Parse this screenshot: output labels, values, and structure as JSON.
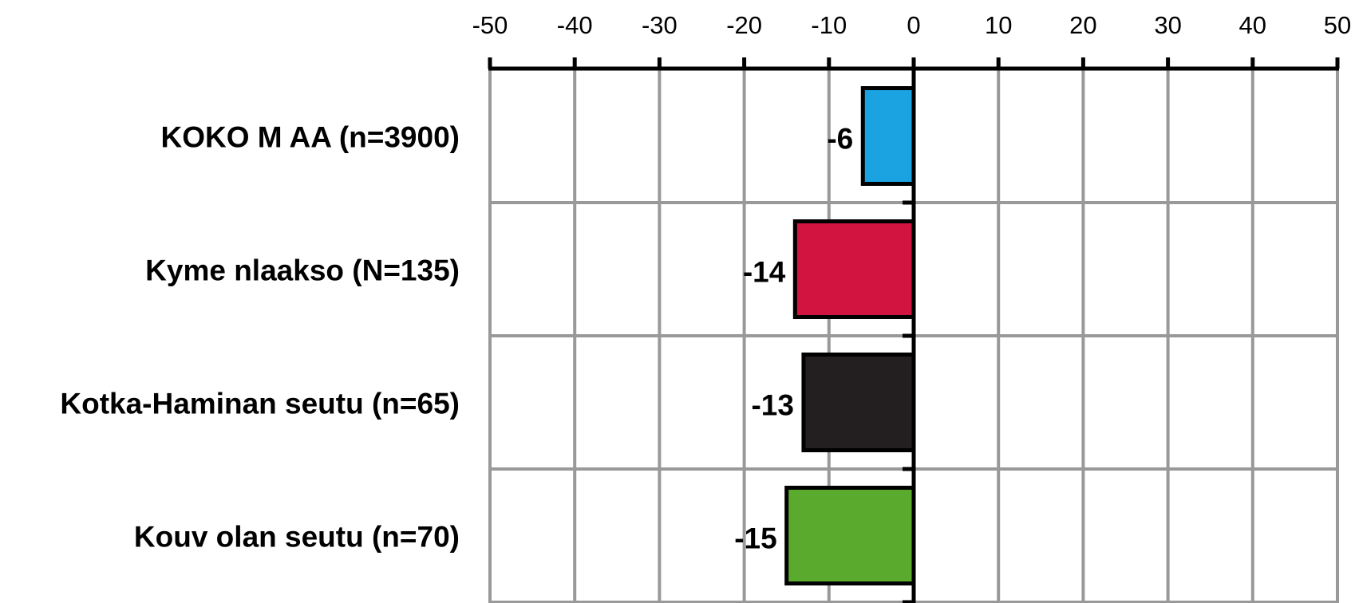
{
  "chart_data": {
    "type": "bar",
    "orientation": "horizontal",
    "x_axis_position": "top",
    "xlim": [
      -50,
      50
    ],
    "x_ticks": [
      -50,
      -40,
      -30,
      -20,
      -10,
      0,
      10,
      20,
      30,
      40,
      50
    ],
    "x_tick_labels": [
      "-50",
      "-40",
      "-30",
      "-20",
      "-10",
      "0",
      "10",
      "20",
      "30",
      "40",
      "50"
    ],
    "grid": true,
    "categories": [
      "KOKO M AA (n=3900)",
      "Kyme nlaakso (N=135)",
      "Kotka-Haminan seutu (n=65)",
      "Kouv olan seutu (n=70)"
    ],
    "values": [
      -6,
      -14,
      -13,
      -15
    ],
    "value_labels": [
      "-6",
      "-14",
      "-13",
      "-15"
    ],
    "colors": [
      "#1aa3e0",
      "#d21440",
      "#231f20",
      "#5aaa2e"
    ],
    "grid_color": "#999999"
  }
}
